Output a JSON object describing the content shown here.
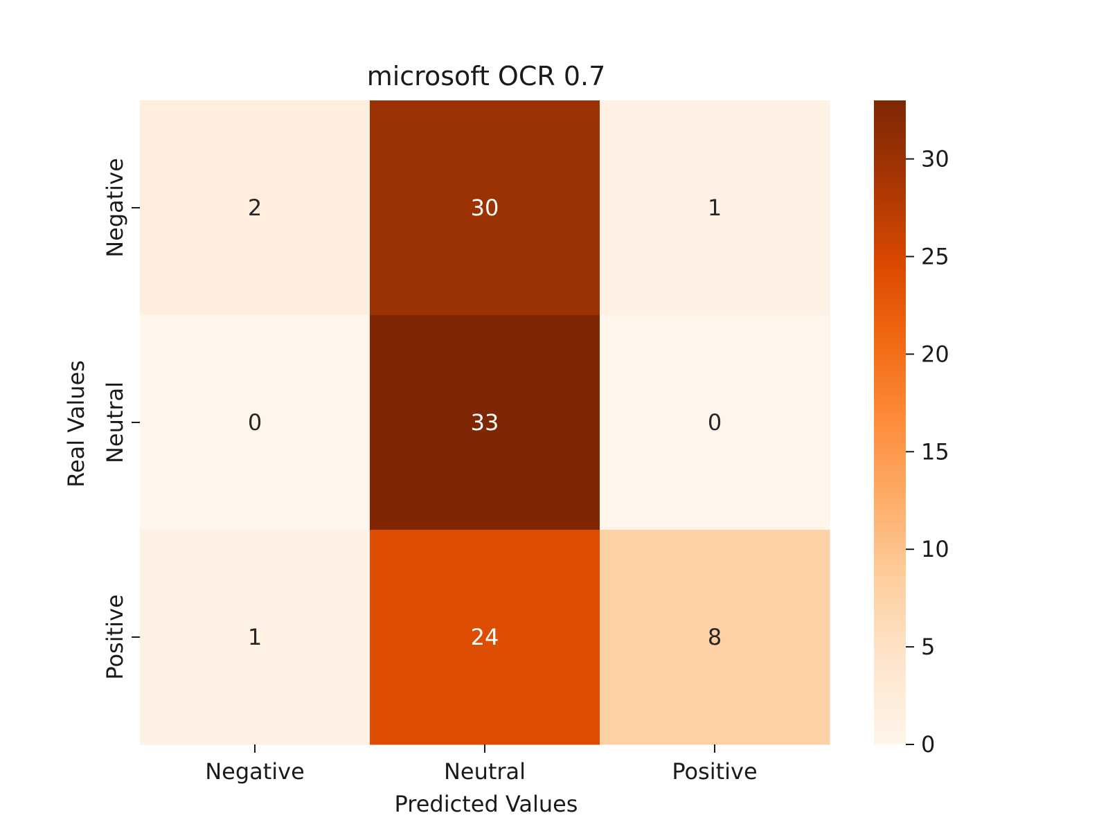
{
  "chart_data": {
    "type": "heatmap",
    "title": "microsoft OCR 0.7",
    "xlabel": "Predicted Values",
    "ylabel": "Real Values",
    "x_categories": [
      "Negative",
      "Neutral",
      "Positive"
    ],
    "y_categories": [
      "Negative",
      "Neutral",
      "Positive"
    ],
    "values": [
      [
        2,
        30,
        1
      ],
      [
        0,
        33,
        0
      ],
      [
        1,
        24,
        8
      ]
    ],
    "colorbar": {
      "range": [
        0,
        33
      ],
      "ticks": [
        0,
        5,
        10,
        15,
        20,
        25,
        30
      ],
      "colormap": "Oranges",
      "stops": [
        [
          0.0,
          "#fff5eb"
        ],
        [
          0.125,
          "#fee6ce"
        ],
        [
          0.25,
          "#fdd0a2"
        ],
        [
          0.375,
          "#fdae6b"
        ],
        [
          0.5,
          "#fd8d3c"
        ],
        [
          0.625,
          "#f16913"
        ],
        [
          0.75,
          "#d94801"
        ],
        [
          0.875,
          "#a63603"
        ],
        [
          1.0,
          "#7f2704"
        ]
      ]
    }
  }
}
